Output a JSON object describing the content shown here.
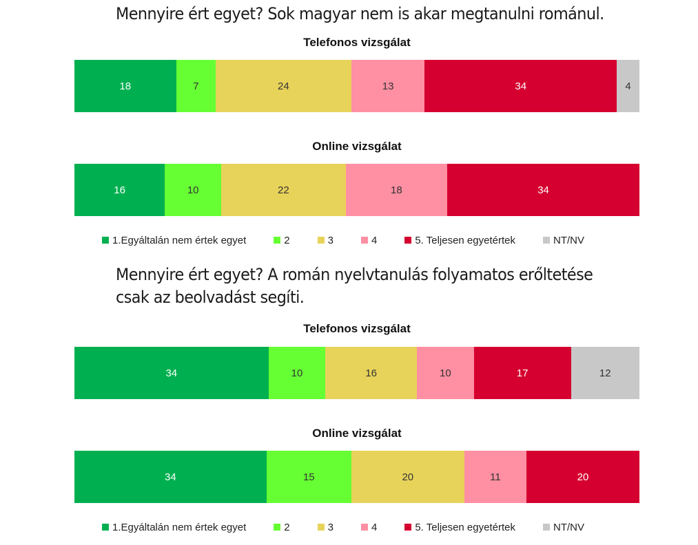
{
  "chart_data": [
    {
      "type": "bar",
      "stacked": true,
      "orientation": "horizontal",
      "question": "Mennyire ért egyet? Sok magyar nem is akar megtanulni románul.",
      "groups": [
        {
          "subtitle": "Telefonos vizsgálat",
          "values": [
            18,
            7,
            24,
            13,
            34,
            4
          ]
        },
        {
          "subtitle": "Online vizsgálat",
          "values": [
            16,
            10,
            22,
            18,
            34
          ]
        }
      ],
      "legend": [
        "1.Egyáltalán nem értek egyet",
        "2",
        "3",
        "4",
        "5. Teljesen egyetértek",
        "NT/NV"
      ],
      "colors": [
        "#00b050",
        "#66ff33",
        "#e8d35a",
        "#ff8fa3",
        "#d5002f",
        "#c8c8c8"
      ],
      "label_colors": [
        "#ffffff",
        "#333333",
        "#333333",
        "#333333",
        "#ffffff",
        "#333333"
      ],
      "legend_position": "bottom"
    },
    {
      "type": "bar",
      "stacked": true,
      "orientation": "horizontal",
      "question": "Mennyire ért egyet? A román nyelvtanulás folyamatos erőltetése csak az beolvadást segíti.",
      "groups": [
        {
          "subtitle": "Telefonos vizsgálat",
          "values": [
            34,
            10,
            16,
            10,
            17,
            12
          ]
        },
        {
          "subtitle": "Online vizsgálat",
          "values": [
            34,
            15,
            20,
            11,
            20
          ]
        }
      ],
      "legend": [
        "1.Egyáltalán nem értek egyet",
        "2",
        "3",
        "4",
        "5. Teljesen egyetértek",
        "NT/NV"
      ],
      "colors": [
        "#00b050",
        "#66ff33",
        "#e8d35a",
        "#ff8fa3",
        "#d5002f",
        "#c8c8c8"
      ],
      "label_colors": [
        "#ffffff",
        "#333333",
        "#333333",
        "#333333",
        "#ffffff",
        "#333333"
      ],
      "legend_position": "bottom"
    }
  ]
}
